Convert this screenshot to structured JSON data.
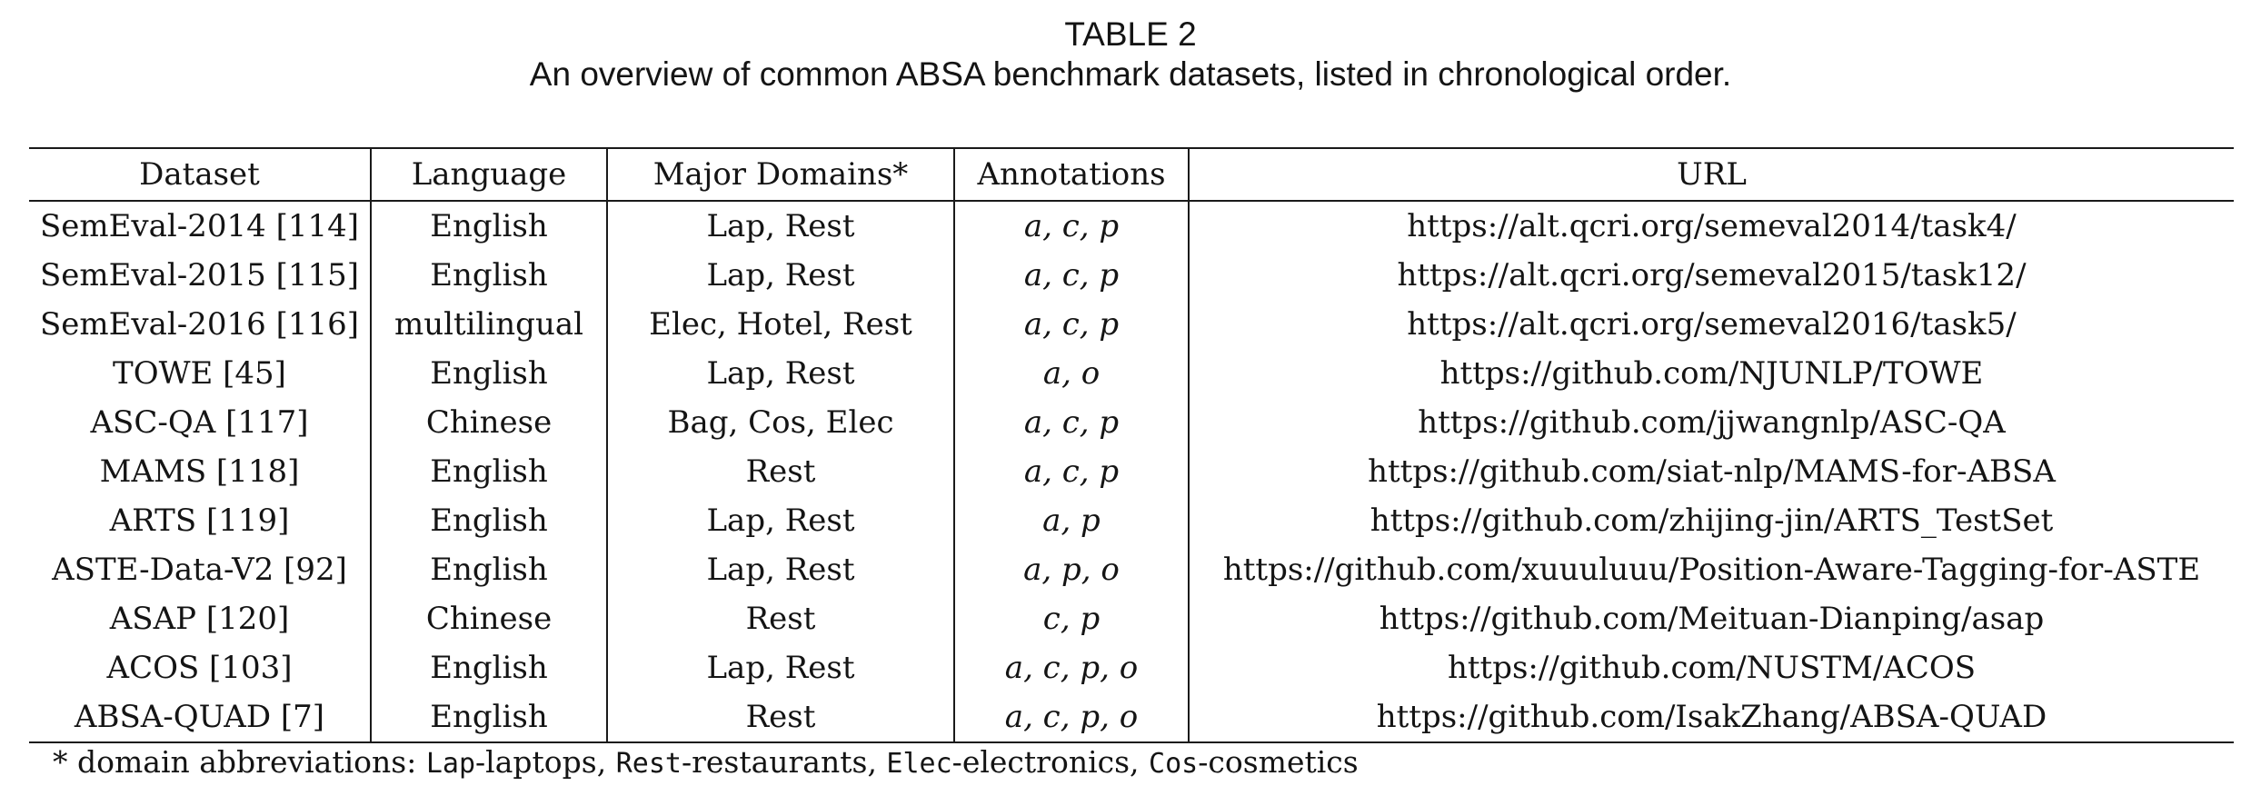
{
  "caption": {
    "label": "TABLE 2",
    "title": "An overview of common ABSA benchmark datasets, listed in chronological order."
  },
  "table": {
    "headers": {
      "dataset": "Dataset",
      "language": "Language",
      "domains": "Major Domains*",
      "annotations": "Annotations",
      "url": "URL"
    },
    "rows": [
      {
        "dataset": "SemEval-2014 [114]",
        "language": "English",
        "domains": "Lap, Rest",
        "annotations": "a, c, p",
        "url": "https://alt.qcri.org/semeval2014/task4/"
      },
      {
        "dataset": "SemEval-2015 [115]",
        "language": "English",
        "domains": "Lap, Rest",
        "annotations": "a, c, p",
        "url": "https://alt.qcri.org/semeval2015/task12/"
      },
      {
        "dataset": "SemEval-2016 [116]",
        "language": "multilingual",
        "domains": "Elec, Hotel, Rest",
        "annotations": "a, c, p",
        "url": "https://alt.qcri.org/semeval2016/task5/"
      },
      {
        "dataset": "TOWE [45]",
        "language": "English",
        "domains": "Lap, Rest",
        "annotations": "a, o",
        "url": "https://github.com/NJUNLP/TOWE"
      },
      {
        "dataset": "ASC-QA [117]",
        "language": "Chinese",
        "domains": "Bag, Cos, Elec",
        "annotations": "a, c, p",
        "url": "https://github.com/jjwangnlp/ASC-QA"
      },
      {
        "dataset": "MAMS [118]",
        "language": "English",
        "domains": "Rest",
        "annotations": "a, c, p",
        "url": "https://github.com/siat-nlp/MAMS-for-ABSA"
      },
      {
        "dataset": "ARTS [119]",
        "language": "English",
        "domains": "Lap, Rest",
        "annotations": "a, p",
        "url": "https://github.com/zhijing-jin/ARTS_TestSet"
      },
      {
        "dataset": "ASTE-Data-V2 [92]",
        "language": "English",
        "domains": "Lap, Rest",
        "annotations": "a, p, o",
        "url": "https://github.com/xuuuluuu/Position-Aware-Tagging-for-ASTE"
      },
      {
        "dataset": "ASAP [120]",
        "language": "Chinese",
        "domains": "Rest",
        "annotations": "c, p",
        "url": "https://github.com/Meituan-Dianping/asap"
      },
      {
        "dataset": "ACOS [103]",
        "language": "English",
        "domains": "Lap, Rest",
        "annotations": "a, c, p, o",
        "url": "https://github.com/NUSTM/ACOS"
      },
      {
        "dataset": "ABSA-QUAD [7]",
        "language": "English",
        "domains": "Rest",
        "annotations": "a, c, p, o",
        "url": "https://github.com/IsakZhang/ABSA-QUAD"
      }
    ]
  },
  "footnote": {
    "prefix": "* domain abbreviations: ",
    "items": [
      {
        "code": "Lap",
        "meaning": "-laptops",
        "sep": ", "
      },
      {
        "code": "Rest",
        "meaning": "-restaurants",
        "sep": ", "
      },
      {
        "code": "Elec",
        "meaning": "-electronics",
        "sep": ", "
      },
      {
        "code": "Cos",
        "meaning": "-cosmetics",
        "sep": ""
      }
    ]
  }
}
